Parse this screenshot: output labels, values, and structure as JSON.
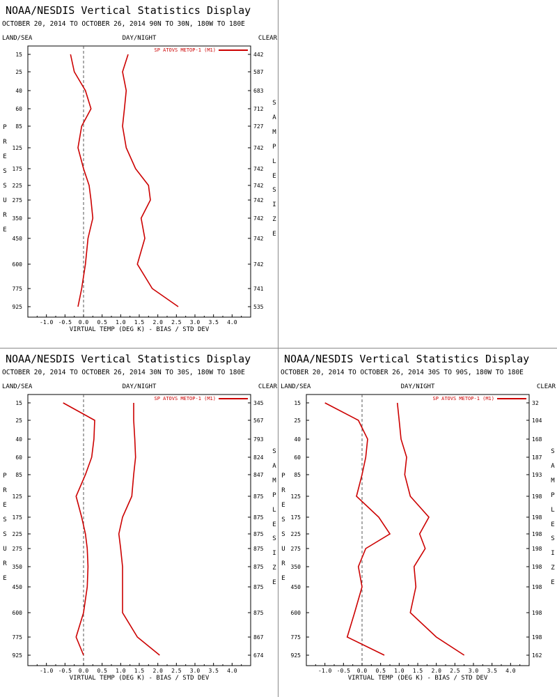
{
  "panels": [
    {
      "title": "NOAA/NESDIS Vertical Statistics Display",
      "subtitle": "OCTOBER 20, 2014 TO OCTOBER 26, 2014  90N TO 30N, 180W TO 180E",
      "left_header": "LAND/SEA",
      "center_header": "DAY/NIGHT",
      "right_header": "CLEAR",
      "left_axis_label": "PRESSURE",
      "right_axis_label": "SAMPLE SIZE",
      "xlabel": "VIRTUAL TEMP (DEG K) - BIAS / STD DEV",
      "legend": "SP ATOVS METOP-1 (M1)",
      "chart_data": {
        "type": "line",
        "pressure_levels": [
          15,
          25,
          40,
          60,
          85,
          125,
          175,
          225,
          275,
          350,
          450,
          600,
          775,
          925
        ],
        "sample_size": [
          442,
          587,
          683,
          712,
          727,
          742,
          742,
          742,
          742,
          742,
          742,
          742,
          741,
          535
        ],
        "xlim": [
          -1.5,
          4.5
        ],
        "xticks": [
          -1.0,
          -0.5,
          0.0,
          0.5,
          1.0,
          1.5,
          2.0,
          2.5,
          3.0,
          3.5,
          4.0
        ],
        "series": [
          {
            "name": "bias",
            "values": [
              -0.35,
              -0.25,
              0.05,
              0.2,
              -0.05,
              -0.15,
              0.0,
              0.15,
              0.2,
              0.25,
              0.12,
              0.05,
              -0.05,
              -0.15
            ]
          },
          {
            "name": "std_dev",
            "values": [
              1.2,
              1.05,
              1.15,
              1.1,
              1.05,
              1.15,
              1.4,
              1.75,
              1.8,
              1.55,
              1.65,
              1.45,
              1.85,
              2.55
            ]
          }
        ],
        "color": "#cc0000"
      }
    },
    {
      "title": "NOAA/NESDIS Vertical Statistics Display",
      "subtitle": "OCTOBER 20, 2014 TO OCTOBER 26, 2014  30N TO 30S, 180W TO 180E",
      "left_header": "LAND/SEA",
      "center_header": "DAY/NIGHT",
      "right_header": "CLEAR",
      "left_axis_label": "PRESSURE",
      "right_axis_label": "SAMPLE SIZE",
      "xlabel": "VIRTUAL TEMP (DEG K) - BIAS / STD DEV",
      "legend": "SP ATOVS METOP-1 (M1)",
      "chart_data": {
        "type": "line",
        "pressure_levels": [
          15,
          25,
          40,
          60,
          85,
          125,
          175,
          225,
          275,
          350,
          450,
          600,
          775,
          925
        ],
        "sample_size": [
          345,
          567,
          793,
          824,
          847,
          875,
          875,
          875,
          875,
          875,
          875,
          875,
          867,
          674
        ],
        "xlim": [
          -1.5,
          4.5
        ],
        "xticks": [
          -1.0,
          -0.5,
          0.0,
          0.5,
          1.0,
          1.5,
          2.0,
          2.5,
          3.0,
          3.5,
          4.0
        ],
        "series": [
          {
            "name": "bias",
            "values": [
              -0.55,
              0.3,
              0.28,
              0.22,
              0.05,
              -0.2,
              -0.05,
              0.05,
              0.1,
              0.12,
              0.1,
              0.0,
              -0.2,
              0.0
            ],
            "pressure": [
              15,
              25,
              40,
              60,
              85,
              125,
              175,
              225,
              275,
              350,
              450,
              600,
              775,
              925
            ]
          },
          {
            "name": "std_dev",
            "values": [
              1.35,
              1.35,
              1.38,
              1.4,
              1.35,
              1.3,
              1.05,
              0.95,
              1.0,
              1.05,
              1.05,
              1.05,
              1.45,
              2.05
            ]
          }
        ],
        "color": "#cc0000"
      }
    },
    {
      "title": "NOAA/NESDIS Vertical Statistics Display",
      "subtitle": "OCTOBER 20, 2014 TO OCTOBER 26, 2014  30S TO 90S, 180W TO 180E",
      "left_header": "LAND/SEA",
      "center_header": "DAY/NIGHT",
      "right_header": "CLEAR",
      "left_axis_label": "PRESSURE",
      "right_axis_label": "SAMPLE SIZE",
      "xlabel": "VIRTUAL TEMP (DEG K) - BIAS / STD DEV",
      "legend": "SP ATOVS METOP-1 (M1)",
      "chart_data": {
        "type": "line",
        "pressure_levels": [
          15,
          25,
          40,
          60,
          85,
          125,
          175,
          225,
          275,
          350,
          450,
          600,
          775,
          925
        ],
        "sample_size": [
          32,
          104,
          168,
          187,
          193,
          198,
          198,
          198,
          198,
          198,
          198,
          198,
          198,
          162
        ],
        "xlim": [
          -1.5,
          4.5
        ],
        "xticks": [
          -1.0,
          -0.5,
          0.0,
          0.5,
          1.0,
          1.5,
          2.0,
          2.5,
          3.0,
          3.5,
          4.0
        ],
        "series": [
          {
            "name": "bias",
            "values": [
              -1.0,
              -0.1,
              0.15,
              0.1,
              0.0,
              -0.15,
              0.45,
              0.75,
              0.1,
              -0.1,
              0.0,
              -0.2,
              -0.4,
              0.6
            ],
            "pressure": [
              15,
              25,
              40,
              60,
              85,
              125,
              175,
              225,
              275,
              350,
              450,
              600,
              775,
              925
            ]
          },
          {
            "name": "std_dev",
            "values": [
              0.95,
              1.0,
              1.05,
              1.2,
              1.15,
              1.3,
              1.8,
              1.55,
              1.7,
              1.4,
              1.45,
              1.3,
              2.0,
              2.75
            ]
          }
        ],
        "color": "#cc0000"
      }
    }
  ]
}
